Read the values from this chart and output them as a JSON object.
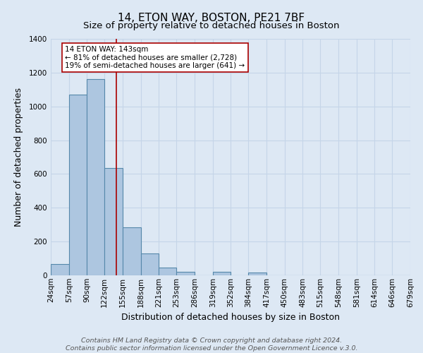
{
  "title": "14, ETON WAY, BOSTON, PE21 7BF",
  "subtitle": "Size of property relative to detached houses in Boston",
  "xlabel": "Distribution of detached houses by size in Boston",
  "ylabel": "Number of detached properties",
  "footer_lines": [
    "Contains HM Land Registry data © Crown copyright and database right 2024.",
    "Contains public sector information licensed under the Open Government Licence v.3.0."
  ],
  "bin_edges": [
    24,
    57,
    90,
    122,
    155,
    188,
    221,
    253,
    286,
    319,
    352,
    384,
    417,
    450,
    483,
    515,
    548,
    581,
    614,
    646,
    679
  ],
  "bin_labels": [
    "24sqm",
    "57sqm",
    "90sqm",
    "122sqm",
    "155sqm",
    "188sqm",
    "221sqm",
    "253sqm",
    "286sqm",
    "319sqm",
    "352sqm",
    "384sqm",
    "417sqm",
    "450sqm",
    "483sqm",
    "515sqm",
    "548sqm",
    "581sqm",
    "614sqm",
    "646sqm",
    "679sqm"
  ],
  "counts": [
    65,
    1070,
    1160,
    635,
    285,
    130,
    45,
    20,
    0,
    20,
    0,
    15,
    0,
    0,
    0,
    0,
    0,
    0,
    0,
    0
  ],
  "bar_color": "#adc6e0",
  "bar_edge_color": "#5588aa",
  "property_line_x": 143,
  "property_line_color": "#aa0000",
  "annotation_text_line1": "14 ETON WAY: 143sqm",
  "annotation_text_line2": "← 81% of detached houses are smaller (2,728)",
  "annotation_text_line3": "19% of semi-detached houses are larger (641) →",
  "ylim": [
    0,
    1400
  ],
  "yticks": [
    0,
    200,
    400,
    600,
    800,
    1000,
    1200,
    1400
  ],
  "bg_color": "#dde8f4",
  "plot_bg_color": "#dde8f4",
  "grid_color": "#c5d5e8",
  "title_fontsize": 11,
  "subtitle_fontsize": 9.5,
  "label_fontsize": 9,
  "tick_fontsize": 7.5,
  "footer_fontsize": 6.8,
  "ann_fontsize": 7.5
}
